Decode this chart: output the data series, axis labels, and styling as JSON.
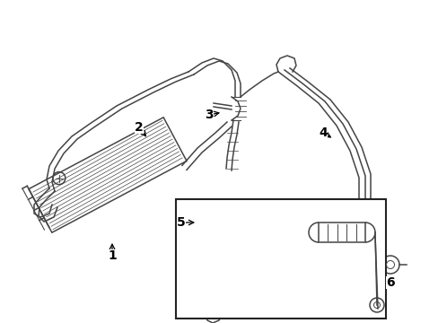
{
  "background_color": "#ffffff",
  "line_color": "#444444",
  "text_color": "#000000",
  "fig_width": 4.89,
  "fig_height": 3.6,
  "dpi": 100
}
